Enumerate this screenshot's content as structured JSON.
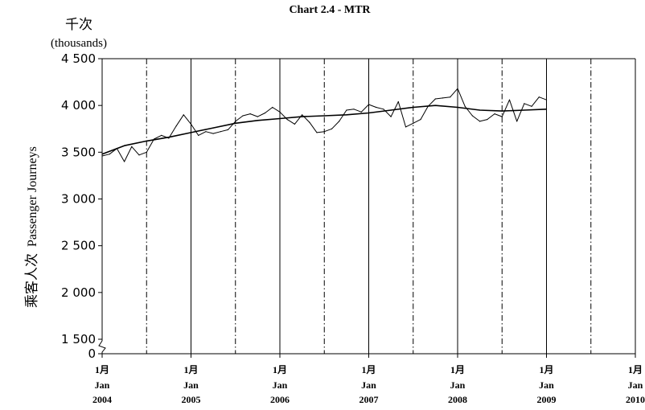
{
  "chart_data": {
    "type": "line",
    "title": "Chart 2.4 - MTR",
    "unit_cn": "千次",
    "unit_en": "(thousands)",
    "ylabel_cn": "乘客人次",
    "ylabel_en": "Passenger Journeys",
    "ylim": [
      0,
      4500
    ],
    "yticks": [
      0,
      1500,
      2000,
      2500,
      3000,
      3500,
      4000,
      4500
    ],
    "ytick_labels": [
      "0",
      "1 500",
      "2 000",
      "2 500",
      "3 000",
      "3 500",
      "4 000",
      "4 500"
    ],
    "axis_break_below": 1500,
    "xlim": [
      "2004-01",
      "2010-01"
    ],
    "xtick_labels": [
      {
        "month": "1月",
        "mon": "Jan",
        "year": "2004"
      },
      {
        "month": "1月",
        "mon": "Jan",
        "year": "2005"
      },
      {
        "month": "1月",
        "mon": "Jan",
        "year": "2006"
      },
      {
        "month": "1月",
        "mon": "Jan",
        "year": "2007"
      },
      {
        "month": "1月",
        "mon": "Jan",
        "year": "2008"
      },
      {
        "month": "1月",
        "mon": "Jan",
        "year": "2009"
      },
      {
        "month": "1月",
        "mon": "Jan",
        "year": "2010"
      }
    ],
    "grid": "solid vertical lines at each January, dash-dot vertical lines at each July",
    "series": [
      {
        "kind": "monthly",
        "x": [
          "2004-01",
          "2004-02",
          "2004-03",
          "2004-04",
          "2004-05",
          "2004-06",
          "2004-07",
          "2004-08",
          "2004-09",
          "2004-10",
          "2004-11",
          "2004-12",
          "2005-01",
          "2005-02",
          "2005-03",
          "2005-04",
          "2005-05",
          "2005-06",
          "2005-07",
          "2005-08",
          "2005-09",
          "2005-10",
          "2005-11",
          "2005-12",
          "2006-01",
          "2006-02",
          "2006-03",
          "2006-04",
          "2006-05",
          "2006-06",
          "2006-07",
          "2006-08",
          "2006-09",
          "2006-10",
          "2006-11",
          "2006-12",
          "2007-01",
          "2007-02",
          "2007-03",
          "2007-04",
          "2007-05",
          "2007-06",
          "2007-07",
          "2007-08",
          "2007-09",
          "2007-10",
          "2007-11",
          "2007-12",
          "2008-01",
          "2008-02",
          "2008-03",
          "2008-04",
          "2008-05",
          "2008-06",
          "2008-07",
          "2008-08",
          "2008-09",
          "2008-10",
          "2008-11",
          "2008-12",
          "2009-01"
        ],
        "y": [
          3460,
          3480,
          3540,
          3400,
          3560,
          3470,
          3500,
          3640,
          3680,
          3650,
          3780,
          3900,
          3800,
          3680,
          3720,
          3700,
          3720,
          3740,
          3830,
          3890,
          3910,
          3880,
          3920,
          3980,
          3930,
          3850,
          3800,
          3900,
          3820,
          3710,
          3720,
          3750,
          3830,
          3950,
          3960,
          3930,
          4010,
          3980,
          3960,
          3880,
          4040,
          3770,
          3810,
          3850,
          3990,
          4070,
          4080,
          4090,
          4180,
          3990,
          3890,
          3830,
          3850,
          3910,
          3880,
          4060,
          3830,
          4020,
          3990,
          4090,
          4060
        ]
      },
      {
        "kind": "trend",
        "x": [
          "2004-01",
          "2004-04",
          "2004-07",
          "2004-10",
          "2005-01",
          "2005-04",
          "2005-07",
          "2005-10",
          "2006-01",
          "2006-04",
          "2006-07",
          "2006-10",
          "2007-01",
          "2007-04",
          "2007-07",
          "2007-10",
          "2008-01",
          "2008-04",
          "2008-07",
          "2008-10",
          "2009-01"
        ],
        "y": [
          3480,
          3570,
          3620,
          3660,
          3710,
          3760,
          3810,
          3840,
          3860,
          3880,
          3890,
          3900,
          3920,
          3950,
          3980,
          4000,
          3980,
          3950,
          3940,
          3950,
          3960
        ]
      }
    ]
  }
}
